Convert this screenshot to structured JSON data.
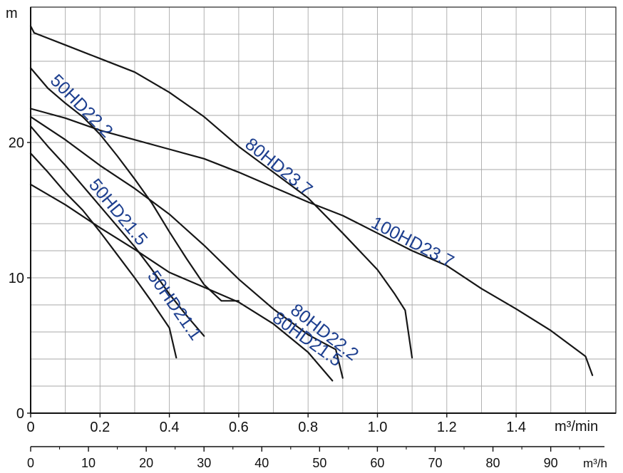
{
  "chart_data": {
    "type": "line",
    "title": "",
    "xlabel": "",
    "ylabel": "",
    "x_unit": "m³/min",
    "x2_unit": "m³/h",
    "y_unit": "m",
    "xlim": [
      0,
      1.7
    ],
    "ylim": [
      0,
      30
    ],
    "x_ticks": [
      0,
      0.2,
      0.4,
      0.6,
      0.8,
      1.0,
      1.2,
      1.4
    ],
    "x_tick_labels": [
      "0",
      "0.2",
      "0.4",
      "0.6",
      "0.8",
      "1.0",
      "1.2",
      "1.4"
    ],
    "y_ticks": [
      0,
      10,
      20
    ],
    "y_tick_labels": [
      "0",
      "10",
      "20"
    ],
    "x2_ticks": [
      0,
      10,
      20,
      30,
      40,
      50,
      60,
      70,
      80,
      90
    ],
    "x2_tick_labels": [
      "0",
      "10",
      "20",
      "30",
      "40",
      "50",
      "60",
      "70",
      "80",
      "90"
    ],
    "grid": true,
    "series": [
      {
        "name": "50HD21.1",
        "color": "#161616",
        "x": [
          0,
          0.05,
          0.1,
          0.15,
          0.2,
          0.25,
          0.3,
          0.35,
          0.4,
          0.42
        ],
        "y": [
          19.2,
          17.8,
          16.3,
          15,
          13.4,
          11.7,
          10,
          8.2,
          6.3,
          4.1
        ]
      },
      {
        "name": "50HD21.5",
        "color": "#161616",
        "x": [
          0,
          0.05,
          0.1,
          0.15,
          0.2,
          0.25,
          0.3,
          0.35,
          0.4,
          0.45,
          0.5
        ],
        "y": [
          21.2,
          19.7,
          18.3,
          16.8,
          15.3,
          13.8,
          12.3,
          10.6,
          8.8,
          7.2,
          5.7
        ]
      },
      {
        "name": "50HD22.2",
        "color": "#161616",
        "x": [
          0,
          0.05,
          0.1,
          0.15,
          0.2,
          0.25,
          0.3,
          0.35,
          0.4,
          0.45,
          0.5,
          0.55,
          0.6
        ],
        "y": [
          25.5,
          24,
          22.9,
          21.9,
          20.6,
          19,
          17.3,
          15.5,
          13.4,
          11.4,
          9.5,
          8.3,
          8.3
        ]
      },
      {
        "name": "80HD21.5",
        "color": "#161616",
        "x": [
          0,
          0.1,
          0.2,
          0.3,
          0.4,
          0.5,
          0.6,
          0.7,
          0.8,
          0.87
        ],
        "y": [
          16.9,
          15.4,
          13.7,
          12.1,
          10.4,
          9.3,
          8.2,
          6.6,
          4.5,
          2.4
        ]
      },
      {
        "name": "80HD22.2",
        "color": "#161616",
        "x": [
          0,
          0.1,
          0.2,
          0.3,
          0.4,
          0.5,
          0.6,
          0.7,
          0.8,
          0.88,
          0.9
        ],
        "y": [
          21.9,
          20.2,
          18.3,
          16.6,
          14.7,
          12.4,
          9.9,
          7.7,
          5.8,
          4.7,
          2.6
        ]
      },
      {
        "name": "80HD23.7",
        "color": "#161616",
        "x": [
          0,
          0.01,
          0.1,
          0.2,
          0.3,
          0.4,
          0.5,
          0.6,
          0.7,
          0.8,
          0.9,
          1.0,
          1.05,
          1.08,
          1.1
        ],
        "y": [
          28.6,
          28.1,
          27.2,
          26.2,
          25.2,
          23.7,
          21.9,
          19.7,
          17.8,
          15.9,
          13.3,
          10.6,
          8.8,
          7.6,
          4.1
        ]
      },
      {
        "name": "100HD23.7",
        "color": "#161616",
        "x": [
          0,
          0.1,
          0.2,
          0.3,
          0.4,
          0.5,
          0.6,
          0.7,
          0.8,
          0.9,
          1.0,
          1.1,
          1.2,
          1.3,
          1.4,
          1.5,
          1.6,
          1.62
        ],
        "y": [
          22.5,
          21.8,
          20.9,
          20.2,
          19.5,
          18.8,
          17.8,
          16.7,
          15.6,
          14.6,
          13.3,
          12.0,
          10.9,
          9.2,
          7.7,
          6.1,
          4.2,
          2.8
        ]
      }
    ],
    "labels": [
      {
        "text": "50HD22.2",
        "series": "50HD22.2"
      },
      {
        "text": "50HD21.5",
        "series": "50HD21.5"
      },
      {
        "text": "50HD21.1",
        "series": "50HD21.1"
      },
      {
        "text": "80HD23.7",
        "series": "80HD23.7"
      },
      {
        "text": "100HD23.7",
        "series": "100HD23.7"
      },
      {
        "text": "80HD22.2",
        "series": "80HD22.2"
      },
      {
        "text": "80HD21.5",
        "series": "80HD21.5"
      }
    ]
  }
}
